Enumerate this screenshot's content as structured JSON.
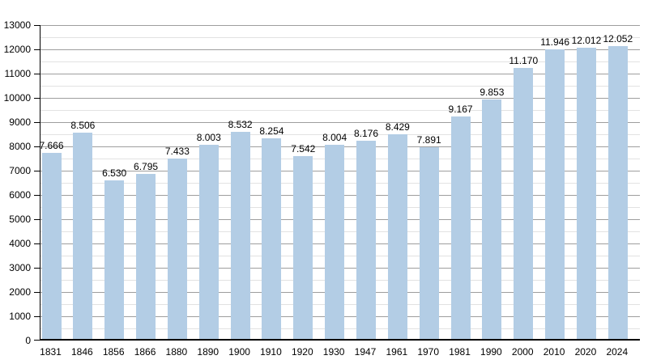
{
  "chart_data": {
    "type": "bar",
    "title": "",
    "xlabel": "",
    "ylabel": "",
    "categories": [
      "1831",
      "1846",
      "1856",
      "1866",
      "1880",
      "1890",
      "1900",
      "1910",
      "1920",
      "1930",
      "1947",
      "1961",
      "1970",
      "1981",
      "1990",
      "2000",
      "2010",
      "2020",
      "2024"
    ],
    "values": [
      7666,
      8506,
      6530,
      6795,
      7433,
      8003,
      8532,
      8254,
      7542,
      8004,
      8176,
      8429,
      7891,
      9167,
      9853,
      11170,
      11946,
      12012,
      12052
    ],
    "value_labels": [
      "7.666",
      "8.506",
      "6.530",
      "6.795",
      "7.433",
      "8.003",
      "8.532",
      "8.254",
      "7.542",
      "8.004",
      "8.176",
      "8.429",
      "7.891",
      "9.167",
      "9.853",
      "11.170",
      "11.946",
      "12.012",
      "12.052"
    ],
    "ylim": [
      0,
      13000
    ],
    "y_major_step": 1000,
    "y_minor_step": 500,
    "grid": true,
    "legend": null,
    "colors": {
      "bar_fill": "#b3cde5",
      "major_gridline": "#9e9e9e",
      "minor_gridline": "#e2e2e2",
      "axis": "#000000",
      "text": "#000000",
      "background": "#ffffff"
    }
  }
}
